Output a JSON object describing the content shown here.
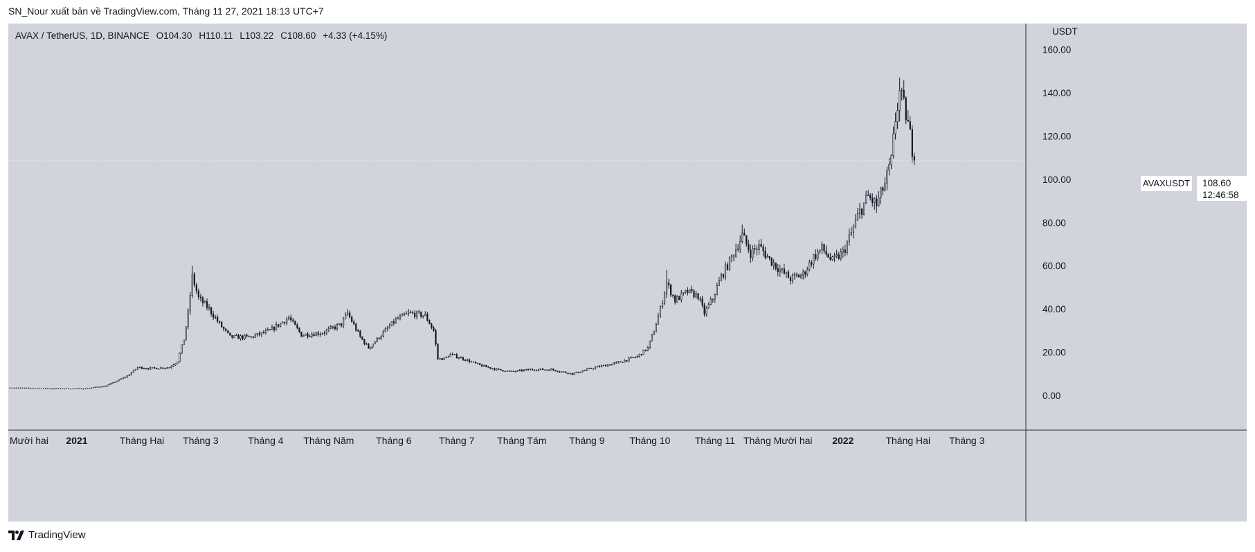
{
  "publisher_line": "SN_Nour xuất bản về TradingView.com, Tháng 11 27, 2021 18:13 UTC+7",
  "header": {
    "symbol": "AVAX / TetherUS, 1D, BINANCE",
    "open": "O104.30",
    "high": "H110.11",
    "low": "L103.22",
    "close": "C108.60",
    "change": "+4.33 (+4.15%)"
  },
  "last_price": {
    "symbol_tag": "AVAXUSDT",
    "price": "108.60",
    "countdown": "12:46:58"
  },
  "footer": {
    "brand": "TradingView",
    "logo_icon": "tradingview-logo-icon"
  },
  "colors": {
    "background": "#d1d4dc",
    "candle": "#131722",
    "axis_border": "#2a2e39"
  },
  "chart_data": {
    "type": "candlestick",
    "title": "AVAX / TetherUS, 1D, BINANCE",
    "ylabel": "USDT",
    "ylim": [
      -16,
      172
    ],
    "y_ticks": [
      "160.00",
      "140.00",
      "120.00",
      "100.00",
      "80.00",
      "60.00",
      "40.00",
      "20.00",
      "0.00"
    ],
    "y_tick_values": [
      160,
      140,
      120,
      100,
      80,
      60,
      40,
      20,
      0
    ],
    "x_ticks": [
      {
        "label": "Mười hai",
        "bold": false
      },
      {
        "label": "2021",
        "bold": true
      },
      {
        "label": "Tháng Hai",
        "bold": false
      },
      {
        "label": "Tháng 3",
        "bold": false
      },
      {
        "label": "Tháng 4",
        "bold": false
      },
      {
        "label": "Tháng Năm",
        "bold": false
      },
      {
        "label": "Tháng 6",
        "bold": false
      },
      {
        "label": "Tháng 7",
        "bold": false
      },
      {
        "label": "Tháng Tám",
        "bold": false
      },
      {
        "label": "Tháng 9",
        "bold": false
      },
      {
        "label": "Tháng 10",
        "bold": false
      },
      {
        "label": "Tháng 11",
        "bold": false
      },
      {
        "label": "Tháng Mười hai",
        "bold": false
      },
      {
        "label": "2022",
        "bold": true
      },
      {
        "label": "Tháng Hai",
        "bold": false
      },
      {
        "label": "Tháng 3",
        "bold": false
      }
    ],
    "x_tick_dates": [
      "2020-12-01",
      "2021-01-01",
      "2021-02-01",
      "2021-03-01",
      "2021-04-01",
      "2021-05-01",
      "2021-06-01",
      "2021-07-01",
      "2021-08-01",
      "2021-09-01",
      "2021-10-01",
      "2021-11-01",
      "2021-12-01",
      "2022-01-01",
      "2022-02-01",
      "2022-03-01"
    ],
    "last_close": 108.6,
    "price_path": [
      [
        "2020-11-30",
        3.6
      ],
      [
        "2020-12-20",
        3.2
      ],
      [
        "2021-01-05",
        3.2
      ],
      [
        "2021-01-15",
        4.5
      ],
      [
        "2021-01-25",
        9
      ],
      [
        "2021-01-30",
        13
      ],
      [
        "2021-02-05",
        12.5
      ],
      [
        "2021-02-14",
        13
      ],
      [
        "2021-02-18",
        16
      ],
      [
        "2021-02-21",
        26
      ],
      [
        "2021-02-23",
        38
      ],
      [
        "2021-02-25",
        55
      ],
      [
        "2021-02-28",
        45
      ],
      [
        "2021-03-05",
        40
      ],
      [
        "2021-03-10",
        33
      ],
      [
        "2021-03-15",
        27
      ],
      [
        "2021-03-25",
        27
      ],
      [
        "2021-04-03",
        30
      ],
      [
        "2021-04-12",
        36
      ],
      [
        "2021-04-18",
        28
      ],
      [
        "2021-04-28",
        29
      ],
      [
        "2021-05-07",
        33
      ],
      [
        "2021-05-10",
        38
      ],
      [
        "2021-05-16",
        27
      ],
      [
        "2021-05-20",
        22
      ],
      [
        "2021-05-27",
        29
      ],
      [
        "2021-06-02",
        35
      ],
      [
        "2021-06-08",
        38
      ],
      [
        "2021-06-16",
        37
      ],
      [
        "2021-06-20",
        30
      ],
      [
        "2021-06-22",
        17
      ],
      [
        "2021-06-25",
        17
      ],
      [
        "2021-06-28",
        19
      ],
      [
        "2021-07-04",
        17
      ],
      [
        "2021-07-12",
        14
      ],
      [
        "2021-07-20",
        12
      ],
      [
        "2021-07-27",
        11
      ],
      [
        "2021-08-05",
        12
      ],
      [
        "2021-08-15",
        12
      ],
      [
        "2021-08-25",
        10
      ],
      [
        "2021-09-05",
        13
      ],
      [
        "2021-09-15",
        15
      ],
      [
        "2021-09-25",
        18
      ],
      [
        "2021-09-30",
        22
      ],
      [
        "2021-10-03",
        30
      ],
      [
        "2021-10-06",
        40
      ],
      [
        "2021-10-09",
        52
      ],
      [
        "2021-10-13",
        44
      ],
      [
        "2021-10-19",
        48
      ],
      [
        "2021-10-24",
        46
      ],
      [
        "2021-10-27",
        38
      ],
      [
        "2021-10-31",
        45
      ],
      [
        "2021-11-04",
        55
      ],
      [
        "2021-11-08",
        62
      ],
      [
        "2021-11-14",
        74
      ],
      [
        "2021-11-18",
        66
      ],
      [
        "2021-11-22",
        69
      ],
      [
        "2021-11-27",
        63
      ],
      [
        "2021-12-02",
        58
      ],
      [
        "2021-12-07",
        54
      ],
      [
        "2021-12-13",
        56
      ],
      [
        "2021-12-18",
        64
      ],
      [
        "2021-12-22",
        68
      ],
      [
        "2021-12-27",
        62
      ],
      [
        "2022-01-01",
        66
      ],
      [
        "2022-01-05",
        75
      ],
      [
        "2022-01-09",
        85
      ],
      [
        "2022-01-13",
        92
      ],
      [
        "2022-01-17",
        88
      ],
      [
        "2022-01-21",
        98
      ],
      [
        "2022-01-24",
        108
      ],
      [
        "2022-01-26",
        128
      ],
      [
        "2022-01-28",
        140
      ],
      [
        "2022-01-31",
        130
      ],
      [
        "2022-02-02",
        120
      ],
      [
        "2022-02-04",
        108.6
      ]
    ],
    "major_swings": [
      {
        "date": "2021-02-25",
        "high": 60
      },
      {
        "date": "2021-05-10",
        "high": 40
      },
      {
        "date": "2021-10-09",
        "high": 58
      },
      {
        "date": "2021-11-14",
        "high": 79
      },
      {
        "date": "2022-01-28",
        "high": 147
      }
    ]
  }
}
